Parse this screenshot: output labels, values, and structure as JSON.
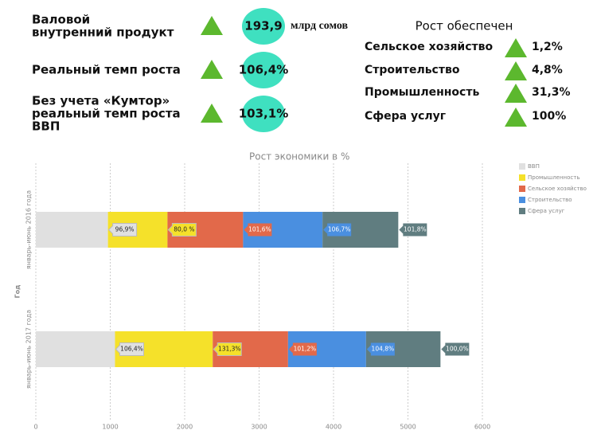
{
  "indicators": [
    {
      "label": [
        "Валовой",
        "внутренний продукт"
      ],
      "value": "193,9",
      "unit": "млрд сомов"
    },
    {
      "label": [
        "Реальный темп роста"
      ],
      "value": "106,4%"
    },
    {
      "label": [
        "Без учета «Кумтор»",
        "реальный темп роста",
        "ВВП"
      ],
      "value": "103,1%"
    }
  ],
  "growth": {
    "title": "Рост обеспечен",
    "items": [
      {
        "label": "Сельское хозяйство",
        "value": "1,2%"
      },
      {
        "label": "Строительство",
        "value": "4,8%"
      },
      {
        "label": "Промышленность",
        "value": "31,3%"
      },
      {
        "label": "Сфера услуг",
        "value": "100%"
      }
    ]
  },
  "chart_data": {
    "type": "stacked-barh",
    "title": "Рост экономики в %",
    "y_label": "Год",
    "categories": [
      "январь-июнь 2016 года",
      "январь-июнь 2017 года"
    ],
    "series": [
      {
        "name": "ВВП",
        "color": "#e0e0e0",
        "values": [
          969,
          1064
        ],
        "value_labels": [
          "96,9%",
          "106,4%"
        ]
      },
      {
        "name": "Промышленность",
        "color": "#f5e12a",
        "values": [
          800,
          1313
        ],
        "value_labels": [
          "80,0 %",
          "131,3%"
        ]
      },
      {
        "name": "Сельское хозяйство",
        "color": "#e2694a",
        "values": [
          1016,
          1012
        ],
        "value_labels": [
          "101,6%",
          "101,2%"
        ]
      },
      {
        "name": "Строительство",
        "color": "#4a8fe0",
        "values": [
          1067,
          1048
        ],
        "value_labels": [
          "106,7%",
          "104,8%"
        ]
      },
      {
        "name": "Сфера услуг",
        "color": "#607d80",
        "values": [
          1018,
          1000
        ],
        "value_labels": [
          "101,8%",
          "100,0%"
        ]
      }
    ],
    "xlim": [
      0,
      6000
    ],
    "xticks": [
      0,
      1000,
      2000,
      3000,
      4000,
      5000,
      6000
    ],
    "grid": true,
    "legend": "top-right"
  }
}
